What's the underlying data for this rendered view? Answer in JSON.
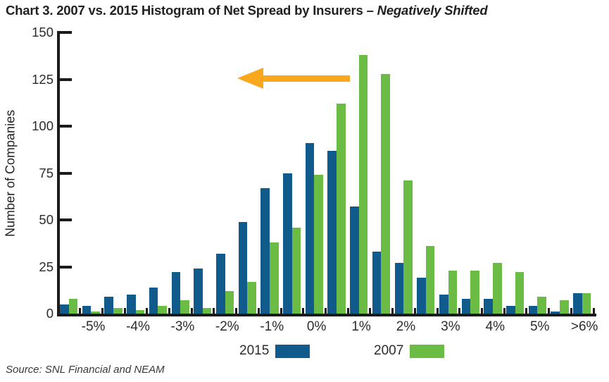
{
  "title": {
    "main": "Chart 3. 2007 vs. 2015 Histogram of Net Spread by Insurers –",
    "emphasis": "Negatively Shifted"
  },
  "y_axis": {
    "title": "Number of Companies",
    "ticks": [
      150,
      125,
      100,
      75,
      50,
      25,
      0
    ]
  },
  "x_axis": {
    "labels": [
      "-5%",
      "-4%",
      "-3%",
      "-2%",
      "-1%",
      "0%",
      "1%",
      "2%",
      "3%",
      "4%",
      "5%",
      ">6%"
    ]
  },
  "legend": [
    {
      "label": "2015",
      "color": "#105a8c"
    },
    {
      "label": "2007",
      "color": "#6abc45"
    }
  ],
  "annotation": {
    "shape": "left-arrow",
    "color": "#f9a81d",
    "y_value": 125
  },
  "source": "Source: SNL Financial and NEAM",
  "colors": {
    "axis": "#1b1b1b",
    "text": "#231f20",
    "tick_text": "#2d2c2b"
  },
  "chart_data": {
    "type": "bar",
    "title": "Chart 3. 2007 vs. 2015 Histogram of Net Spread by Insurers – Negatively Shifted",
    "xlabel": "",
    "ylabel": "Number of Companies",
    "ylim": [
      0,
      150
    ],
    "y_ticks": [
      0,
      25,
      50,
      75,
      100,
      125,
      150
    ],
    "grid": false,
    "legend_position": "bottom",
    "bins_per_label": 2,
    "bin_labels": [
      "",
      "-5%",
      "",
      "-4%",
      "",
      "-3%",
      "",
      "-2%",
      "",
      "-1%",
      "",
      "0%",
      "",
      "1%",
      "",
      "2%",
      "",
      "3%",
      "",
      "4%",
      "",
      "5%",
      "",
      ">6%"
    ],
    "series": [
      {
        "name": "2015",
        "color": "#105a8c",
        "values": [
          5,
          4,
          9,
          10,
          14,
          22,
          24,
          32,
          49,
          67,
          75,
          91,
          87,
          57,
          33,
          27,
          19,
          10,
          8,
          8,
          4,
          4,
          1,
          11
        ]
      },
      {
        "name": "2007",
        "color": "#6abc45",
        "values": [
          8,
          1,
          3,
          2,
          4,
          7,
          3,
          12,
          17,
          38,
          46,
          74,
          112,
          138,
          128,
          71,
          36,
          23,
          23,
          27,
          22,
          9,
          7,
          11
        ]
      }
    ]
  }
}
